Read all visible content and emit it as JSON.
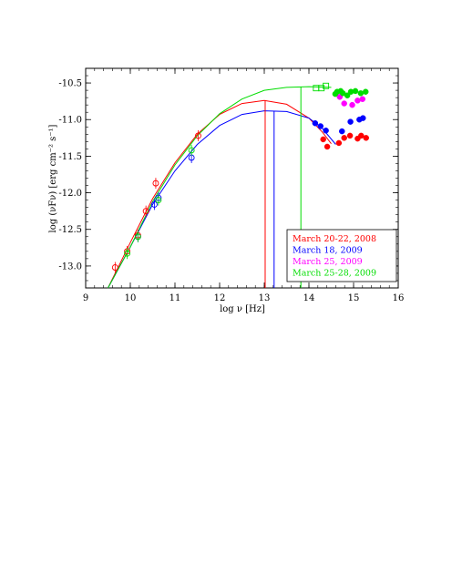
{
  "chart_data": {
    "type": "scatter",
    "xlabel": "log ν [Hz]",
    "ylabel": "log (νFν) [erg cm⁻² s⁻¹]",
    "xlim": [
      9,
      16
    ],
    "ylim": [
      -13.3,
      -10.3
    ],
    "x_ticks": [
      "9",
      "10",
      "11",
      "12",
      "13",
      "14",
      "15",
      "16"
    ],
    "x_tick_values": [
      9,
      10,
      11,
      12,
      13,
      14,
      15,
      16
    ],
    "y_ticks": [
      "-10.5",
      "-11.0",
      "-11.5",
      "-12.0",
      "-12.5",
      "-13.0"
    ],
    "y_tick_values": [
      -10.5,
      -11.0,
      -11.5,
      -12.0,
      -12.5,
      -13.0
    ],
    "legend_position": "bottom-right",
    "grid": false,
    "series": [
      {
        "name": "March 20-22, 2008",
        "color": "#ff0000",
        "radio_points": [
          [
            9.66,
            -13.02
          ],
          [
            9.93,
            -12.8
          ],
          [
            10.17,
            -12.58
          ],
          [
            10.35,
            -12.25
          ],
          [
            10.57,
            -11.87
          ],
          [
            11.52,
            -11.22
          ]
        ],
        "optical_points": [
          [
            14.32,
            -11.27
          ],
          [
            14.41,
            -11.37
          ],
          [
            14.67,
            -11.32
          ],
          [
            14.79,
            -11.25
          ],
          [
            14.92,
            -11.22
          ],
          [
            15.09,
            -11.26
          ],
          [
            15.17,
            -11.22
          ],
          [
            15.28,
            -11.25
          ]
        ],
        "model_curve": [
          [
            9.5,
            -13.4
          ],
          [
            10,
            -12.68
          ],
          [
            10.5,
            -12.08
          ],
          [
            11,
            -11.59
          ],
          [
            11.5,
            -11.2
          ],
          [
            12,
            -10.93
          ],
          [
            12.5,
            -10.78
          ],
          [
            13,
            -10.74
          ],
          [
            13.5,
            -10.79
          ],
          [
            14,
            -10.98
          ],
          [
            14.3,
            -11.17
          ],
          [
            14.5,
            -11.33
          ]
        ],
        "peak_marker": 13.02
      },
      {
        "name": "March 18, 2009",
        "color": "#0000ff",
        "radio_points": [
          [
            10.17,
            -12.6
          ],
          [
            10.54,
            -12.16
          ],
          [
            10.63,
            -12.07
          ],
          [
            11.37,
            -11.52
          ]
        ],
        "optical_points": [
          [
            14.14,
            -11.05
          ],
          [
            14.26,
            -11.09
          ],
          [
            14.38,
            -11.15
          ],
          [
            14.74,
            -11.16
          ],
          [
            14.93,
            -11.03
          ],
          [
            15.13,
            -11.0
          ],
          [
            15.21,
            -10.98
          ]
        ],
        "model_curve": [
          [
            9.5,
            -13.4
          ],
          [
            10,
            -12.74
          ],
          [
            10.5,
            -12.16
          ],
          [
            11,
            -11.7
          ],
          [
            11.5,
            -11.34
          ],
          [
            12,
            -11.08
          ],
          [
            12.5,
            -10.93
          ],
          [
            13,
            -10.88
          ],
          [
            13.5,
            -10.89
          ],
          [
            14,
            -10.98
          ],
          [
            14.3,
            -11.12
          ],
          [
            14.6,
            -11.34
          ]
        ],
        "peak_marker": 13.22
      },
      {
        "name": "March 25, 2009",
        "color": "#ff00ff",
        "radio_points": [],
        "optical_points": [
          [
            14.69,
            -10.69
          ],
          [
            14.79,
            -10.78
          ],
          [
            14.97,
            -10.8
          ],
          [
            15.09,
            -10.74
          ],
          [
            15.2,
            -10.72
          ]
        ],
        "model_curve": [],
        "peak_marker": null
      },
      {
        "name": "March 25-28, 2009",
        "color": "#00dd00",
        "radio_points": [
          [
            9.93,
            -12.83
          ],
          [
            10.17,
            -12.6
          ],
          [
            10.63,
            -12.1
          ],
          [
            11.37,
            -11.42
          ]
        ],
        "optical_points": [
          [
            14.59,
            -10.65
          ],
          [
            14.63,
            -10.62
          ],
          [
            14.71,
            -10.61
          ],
          [
            14.76,
            -10.64
          ],
          [
            14.86,
            -10.67
          ],
          [
            14.94,
            -10.62
          ],
          [
            15.04,
            -10.61
          ],
          [
            15.16,
            -10.64
          ],
          [
            15.27,
            -10.62
          ]
        ],
        "square_points": [
          [
            14.16,
            -10.57
          ],
          [
            14.28,
            -10.57
          ],
          [
            14.38,
            -10.54
          ]
        ],
        "model_curve": [
          [
            9.5,
            -13.5
          ],
          [
            10,
            -12.74
          ],
          [
            10.5,
            -12.12
          ],
          [
            11,
            -11.62
          ],
          [
            11.5,
            -11.22
          ],
          [
            12,
            -10.92
          ],
          [
            12.5,
            -10.72
          ],
          [
            13,
            -10.6
          ],
          [
            13.5,
            -10.56
          ],
          [
            14,
            -10.55
          ],
          [
            14.5,
            -10.56
          ]
        ],
        "peak_marker": 13.82
      }
    ]
  }
}
